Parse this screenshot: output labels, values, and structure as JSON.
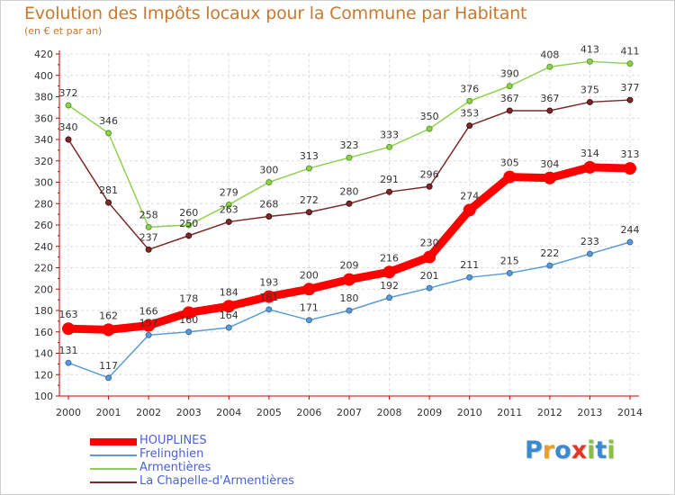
{
  "title": "Evolution des Impôts locaux pour la Commune par Habitant",
  "subtitle": "(en € et par an)",
  "logo": {
    "letters": [
      "P",
      "r",
      "o",
      "x",
      "i",
      "t",
      "i"
    ],
    "colors": [
      "#3a8ad0",
      "#e8a020",
      "#3a8ad0",
      "#e03828",
      "#8ac040",
      "#3a8ad0",
      "#8ac040"
    ]
  },
  "chart_data": {
    "type": "line",
    "x": [
      "2000",
      "2001",
      "2002",
      "2003",
      "2004",
      "2005",
      "2006",
      "2007",
      "2008",
      "2009",
      "2010",
      "2011",
      "2012",
      "2013",
      "2014"
    ],
    "ylim": [
      100,
      420
    ],
    "yticks": [
      "100",
      "120",
      "140",
      "160",
      "180",
      "200",
      "220",
      "240",
      "260",
      "280",
      "300",
      "320",
      "340",
      "360",
      "380",
      "400",
      "420"
    ],
    "grid": true,
    "legend_position": "bottom-left",
    "series": [
      {
        "name": "HOUPLINES",
        "color": "#ff0000",
        "values": [
          163,
          162,
          166,
          178,
          184,
          193,
          200,
          209,
          216,
          230,
          274,
          305,
          304,
          314,
          313
        ],
        "labels": [
          "163",
          "162",
          "166",
          "178",
          "184",
          "193",
          "200",
          "209",
          "216",
          "230",
          "274",
          "305",
          "304",
          "314",
          "313"
        ]
      },
      {
        "name": "Frelinghien",
        "color": "#5b9bd5",
        "values": [
          131,
          117,
          157,
          160,
          164,
          181,
          171,
          180,
          192,
          201,
          211,
          215,
          222,
          233,
          244
        ],
        "labels": [
          "131",
          "117",
          "157",
          "160",
          "164",
          "181",
          "171",
          "180",
          "192",
          "201",
          "211",
          "215",
          "222",
          "233",
          "244"
        ]
      },
      {
        "name": "Armentières",
        "color": "#8fd14f",
        "values": [
          372,
          346,
          258,
          260,
          279,
          300,
          313,
          323,
          333,
          350,
          376,
          390,
          408,
          413,
          411
        ],
        "labels": [
          "372",
          "346",
          "258",
          "260",
          "279",
          "300",
          "313",
          "323",
          "333",
          "350",
          "376",
          "390",
          "408",
          "413",
          "411"
        ]
      },
      {
        "name": "La Chapelle-d'Armentières",
        "color": "#7a2a2a",
        "values": [
          340,
          281,
          237,
          250,
          263,
          268,
          272,
          280,
          291,
          296,
          353,
          367,
          367,
          375,
          377
        ],
        "labels": [
          "340",
          "281",
          "237",
          "250",
          "263",
          "268",
          "272",
          "280",
          "291",
          "296",
          "353",
          "367",
          "367",
          "375",
          "377"
        ]
      }
    ]
  }
}
